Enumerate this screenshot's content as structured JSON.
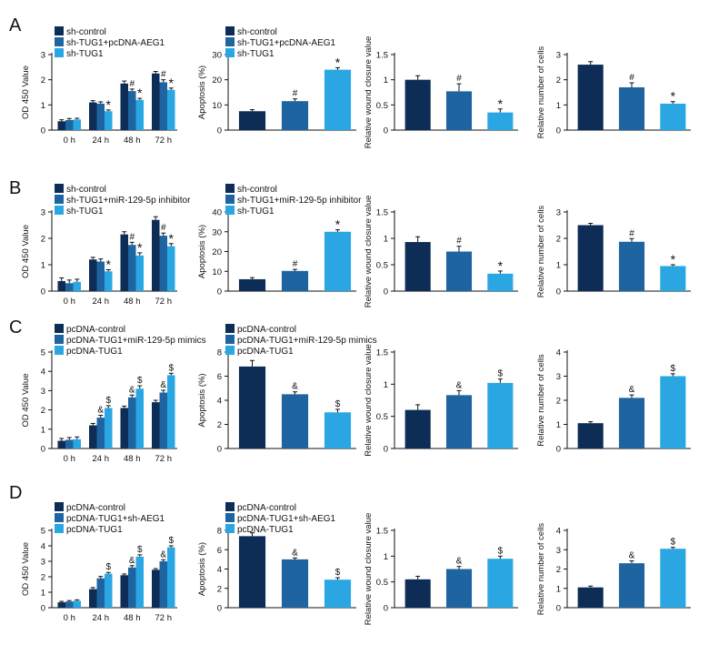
{
  "colors": {
    "c1": "#0d2d56",
    "c2": "#1e64a0",
    "c3": "#2aa7e2"
  },
  "chart_data": [
    {
      "panel": "A",
      "position": "left",
      "type": "bar",
      "ylabel": "OD 450 Value",
      "ylim": [
        0,
        3
      ],
      "yticks": [
        0,
        1,
        2,
        3
      ],
      "categories": [
        "0 h",
        "24 h",
        "48 h",
        "72 h"
      ],
      "legend": [
        "sh-control",
        "sh-TUG1+pcDNA-AEG1",
        "sh-TUG1"
      ],
      "series": [
        {
          "name": "sh-control",
          "values": [
            0.35,
            1.1,
            1.85,
            2.25
          ],
          "err": [
            0.06,
            0.07,
            0.1,
            0.08
          ],
          "marks": [
            "",
            "",
            "",
            ""
          ]
        },
        {
          "name": "sh-TUG1+pcDNA-AEG1",
          "values": [
            0.4,
            1.05,
            1.55,
            1.9
          ],
          "err": [
            0.06,
            0.07,
            0.08,
            0.1
          ],
          "marks": [
            "",
            "",
            "#",
            "#"
          ]
        },
        {
          "name": "sh-TUG1",
          "values": [
            0.42,
            0.75,
            1.2,
            1.6
          ],
          "err": [
            0.05,
            0.05,
            0.06,
            0.07
          ],
          "marks": [
            "",
            "*",
            "*",
            "*"
          ]
        }
      ]
    },
    {
      "panel": "A",
      "position": "apop",
      "type": "bar",
      "ylabel": "Apoptosis (%)",
      "ylim": [
        0,
        30
      ],
      "yticks": [
        0,
        10,
        20,
        30
      ],
      "categories": [
        "sh-control",
        "sh-TUG1+pcDNA-AEG1",
        "sh-TUG1"
      ],
      "legend": [
        "sh-control",
        "sh-TUG1+pcDNA-AEG1",
        "sh-TUG1"
      ],
      "values": [
        7.5,
        11.5,
        24
      ],
      "err": [
        0.6,
        0.9,
        0.8
      ],
      "marks": [
        "",
        "#",
        "*"
      ]
    },
    {
      "panel": "A",
      "position": "wound",
      "type": "bar",
      "ylabel": "Relative wound closure value",
      "ylim": [
        0,
        1.5
      ],
      "yticks": [
        0,
        0.5,
        1.0,
        1.5
      ],
      "categories": [
        "sh-control",
        "sh-TUG1+pcDNA-AEG1",
        "sh-TUG1"
      ],
      "values": [
        1.0,
        0.77,
        0.35
      ],
      "err": [
        0.08,
        0.15,
        0.07
      ],
      "marks": [
        "",
        "#",
        "*"
      ]
    },
    {
      "panel": "A",
      "position": "cells",
      "type": "bar",
      "ylabel": "Relative number of cells",
      "ylim": [
        0,
        3
      ],
      "yticks": [
        0,
        1,
        2,
        3
      ],
      "categories": [
        "sh-control",
        "sh-TUG1+pcDNA-AEG1",
        "sh-TUG1"
      ],
      "values": [
        2.6,
        1.7,
        1.05
      ],
      "err": [
        0.12,
        0.18,
        0.08
      ],
      "marks": [
        "",
        "#",
        "*"
      ]
    },
    {
      "panel": "B",
      "position": "left",
      "type": "bar",
      "ylabel": "OD 450 Value",
      "ylim": [
        0,
        3
      ],
      "yticks": [
        0,
        1,
        2,
        3
      ],
      "categories": [
        "0 h",
        "24 h",
        "48 h",
        "72 h"
      ],
      "legend": [
        "sh-control",
        "sh-TUG1+miR-129-5p inhibitor",
        "sh-TUG1"
      ],
      "series": [
        {
          "name": "sh-control",
          "values": [
            0.38,
            1.2,
            2.15,
            2.7
          ],
          "err": [
            0.12,
            0.08,
            0.1,
            0.12
          ],
          "marks": [
            "",
            "",
            "",
            ""
          ]
        },
        {
          "name": "sh-TUG1+miR-129-5p inhibitor",
          "values": [
            0.3,
            1.12,
            1.75,
            2.1
          ],
          "err": [
            0.12,
            0.1,
            0.1,
            0.1
          ],
          "marks": [
            "",
            "",
            "#",
            "#"
          ]
        },
        {
          "name": "sh-TUG1",
          "values": [
            0.35,
            0.75,
            1.35,
            1.7
          ],
          "err": [
            0.1,
            0.06,
            0.1,
            0.1
          ],
          "marks": [
            "",
            "*",
            "*",
            "*"
          ]
        }
      ]
    },
    {
      "panel": "B",
      "position": "apop",
      "type": "bar",
      "ylabel": "Apoptosis (%)",
      "ylim": [
        0,
        40
      ],
      "yticks": [
        0,
        10,
        20,
        30,
        40
      ],
      "categories": [
        "sh-control",
        "sh-TUG1+miR-129-5p inhibitor",
        "sh-TUG1"
      ],
      "legend": [
        "sh-control",
        "sh-TUG1+miR-129-5p inhibitor",
        "sh-TUG1"
      ],
      "values": [
        6,
        10.2,
        30
      ],
      "err": [
        0.8,
        0.8,
        1.0
      ],
      "marks": [
        "",
        "#",
        "*"
      ]
    },
    {
      "panel": "B",
      "position": "wound",
      "type": "bar",
      "ylabel": "Relative wound closure value",
      "ylim": [
        0,
        1.5
      ],
      "yticks": [
        0,
        0.5,
        1.0,
        1.5
      ],
      "categories": [
        "sh-control",
        "sh-TUG1+miR-129-5p inhibitor",
        "sh-TUG1"
      ],
      "values": [
        0.93,
        0.75,
        0.33
      ],
      "err": [
        0.1,
        0.1,
        0.05
      ],
      "marks": [
        "",
        "#",
        "*"
      ]
    },
    {
      "panel": "B",
      "position": "cells",
      "type": "bar",
      "ylabel": "Relative number of cells",
      "ylim": [
        0,
        3
      ],
      "yticks": [
        0,
        1,
        2,
        3
      ],
      "categories": [
        "sh-control",
        "sh-TUG1+miR-129-5p inhibitor",
        "sh-TUG1"
      ],
      "values": [
        2.5,
        1.87,
        0.95
      ],
      "err": [
        0.07,
        0.12,
        0.05
      ],
      "marks": [
        "",
        "#",
        "*"
      ]
    },
    {
      "panel": "C",
      "position": "left",
      "type": "bar",
      "ylabel": "OD 450 Value",
      "ylim": [
        0,
        5
      ],
      "yticks": [
        0,
        1,
        2,
        3,
        4,
        5
      ],
      "categories": [
        "0 h",
        "24 h",
        "48 h",
        "72 h"
      ],
      "legend": [
        "pcDNA-control",
        "pcDNA-TUG1+miR-129-5p mimics",
        "pcDNA-TUG1"
      ],
      "series": [
        {
          "name": "pcDNA-control",
          "values": [
            0.4,
            1.2,
            2.1,
            2.4
          ],
          "err": [
            0.12,
            0.1,
            0.1,
            0.1
          ],
          "marks": [
            "",
            "",
            "",
            ""
          ]
        },
        {
          "name": "pcDNA-TUG1+miR-129-5p mimics",
          "values": [
            0.45,
            1.6,
            2.65,
            2.9
          ],
          "err": [
            0.12,
            0.12,
            0.12,
            0.12
          ],
          "marks": [
            "",
            "&",
            "&",
            "&"
          ]
        },
        {
          "name": "pcDNA-TUG1",
          "values": [
            0.48,
            2.1,
            3.1,
            3.8
          ],
          "err": [
            0.12,
            0.12,
            0.15,
            0.1
          ],
          "marks": [
            "",
            "$",
            "$",
            "$"
          ]
        }
      ]
    },
    {
      "panel": "C",
      "position": "apop",
      "type": "bar",
      "ylabel": "Apoptosis (%)",
      "ylim": [
        0,
        8
      ],
      "yticks": [
        0,
        2,
        4,
        6,
        8
      ],
      "categories": [
        "pcDNA-control",
        "pcDNA-TUG1+miR-129-5p mimics",
        "pcDNA-TUG1"
      ],
      "legend": [
        "pcDNA-control",
        "pcDNA-TUG1+miR-129-5p mimics",
        "pcDNA-TUG1"
      ],
      "values": [
        6.8,
        4.5,
        3.0
      ],
      "err": [
        0.5,
        0.2,
        0.25
      ],
      "marks": [
        "",
        "&",
        "$"
      ]
    },
    {
      "panel": "C",
      "position": "wound",
      "type": "bar",
      "ylabel": "Relative wound closure value",
      "ylim": [
        0,
        1.5
      ],
      "yticks": [
        0,
        0.5,
        1.0,
        1.5
      ],
      "categories": [
        "pcDNA-control",
        "pcDNA-TUG1+miR-129-5p mimics",
        "pcDNA-TUG1"
      ],
      "values": [
        0.6,
        0.83,
        1.02
      ],
      "err": [
        0.08,
        0.07,
        0.06
      ],
      "marks": [
        "",
        "&",
        "$"
      ]
    },
    {
      "panel": "C",
      "position": "cells",
      "type": "bar",
      "ylabel": "Relative number of cells",
      "ylim": [
        0,
        4
      ],
      "yticks": [
        0,
        1,
        2,
        3,
        4
      ],
      "categories": [
        "pcDNA-control",
        "pcDNA-TUG1+miR-129-5p mimics",
        "pcDNA-TUG1"
      ],
      "values": [
        1.05,
        2.1,
        3.0
      ],
      "err": [
        0.06,
        0.12,
        0.1
      ],
      "marks": [
        "",
        "&",
        "$"
      ]
    },
    {
      "panel": "D",
      "position": "left",
      "type": "bar",
      "ylabel": "OD 450 Value",
      "ylim": [
        0,
        5
      ],
      "yticks": [
        0,
        1,
        2,
        3,
        4,
        5
      ],
      "categories": [
        "0 h",
        "24 h",
        "48 h",
        "72 h"
      ],
      "legend": [
        "pcDNA-control",
        "pcDNA-TUG1+sh-AEG1",
        "pcDNA-TUG1"
      ],
      "series": [
        {
          "name": "pcDNA-control",
          "values": [
            0.35,
            1.2,
            2.1,
            2.45
          ],
          "err": [
            0.06,
            0.1,
            0.08,
            0.08
          ],
          "marks": [
            "",
            "",
            "",
            ""
          ]
        },
        {
          "name": "pcDNA-TUG1+sh-AEG1",
          "values": [
            0.4,
            1.9,
            2.6,
            3.0
          ],
          "err": [
            0.06,
            0.12,
            0.12,
            0.1
          ],
          "marks": [
            "",
            "",
            "&",
            "&"
          ]
        },
        {
          "name": "pcDNA-TUG1",
          "values": [
            0.45,
            2.2,
            3.3,
            3.9
          ],
          "err": [
            0.06,
            0.08,
            0.12,
            0.1
          ],
          "marks": [
            "",
            "$",
            "$",
            "$"
          ]
        }
      ]
    },
    {
      "panel": "D",
      "position": "apop",
      "type": "bar",
      "ylabel": "Apoptosis (%)",
      "ylim": [
        0,
        8
      ],
      "yticks": [
        0,
        2,
        4,
        6,
        8
      ],
      "categories": [
        "pcDNA-control",
        "pcDNA-TUG1+sh-AEG1",
        "pcDNA-TUG1"
      ],
      "legend": [
        "pcDNA-control",
        "pcDNA-TUG1+sh-AEG1",
        "pcDNA-TUG1"
      ],
      "values": [
        7.4,
        5.0,
        2.9
      ],
      "err": [
        0.35,
        0.15,
        0.2
      ],
      "marks": [
        "",
        "&",
        "$"
      ]
    },
    {
      "panel": "D",
      "position": "wound",
      "type": "bar",
      "ylabel": "Relative wound closure value",
      "ylim": [
        0,
        1.5
      ],
      "yticks": [
        0,
        0.5,
        1.0,
        1.5
      ],
      "categories": [
        "pcDNA-control",
        "pcDNA-TUG1+sh-AEG1",
        "pcDNA-TUG1"
      ],
      "values": [
        0.55,
        0.75,
        0.95
      ],
      "err": [
        0.06,
        0.05,
        0.05
      ],
      "marks": [
        "",
        "&",
        "$"
      ]
    },
    {
      "panel": "D",
      "position": "cells",
      "type": "bar",
      "ylabel": "Relative number of cells",
      "ylim": [
        0,
        4
      ],
      "yticks": [
        0,
        1,
        2,
        3,
        4
      ],
      "categories": [
        "pcDNA-control",
        "pcDNA-TUG1+sh-AEG1",
        "pcDNA-TUG1"
      ],
      "values": [
        1.05,
        2.3,
        3.05
      ],
      "err": [
        0.07,
        0.12,
        0.07
      ],
      "marks": [
        "",
        "&",
        "$"
      ]
    }
  ]
}
